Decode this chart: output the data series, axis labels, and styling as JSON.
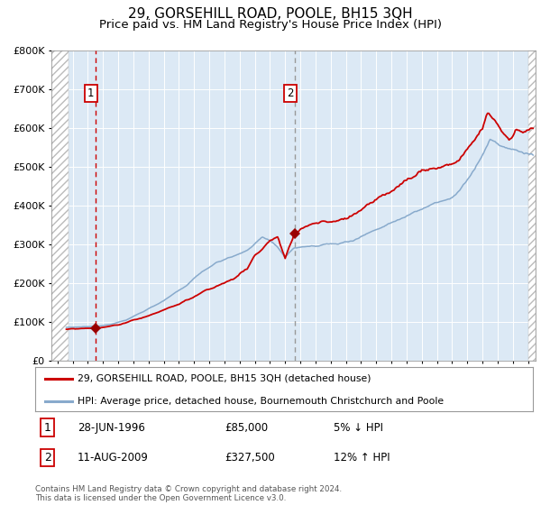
{
  "title": "29, GORSEHILL ROAD, POOLE, BH15 3QH",
  "subtitle": "Price paid vs. HM Land Registry's House Price Index (HPI)",
  "legend_line1": "29, GORSEHILL ROAD, POOLE, BH15 3QH (detached house)",
  "legend_line2": "HPI: Average price, detached house, Bournemouth Christchurch and Poole",
  "sale1_date": "28-JUN-1996",
  "sale1_price": 85000,
  "sale1_note": "5% ↓ HPI",
  "sale1_year": 1996.49,
  "sale2_date": "11-AUG-2009",
  "sale2_price": 327500,
  "sale2_note": "12% ↑ HPI",
  "sale2_year": 2009.62,
  "ylim": [
    0,
    800000
  ],
  "yticks": [
    0,
    100000,
    200000,
    300000,
    400000,
    500000,
    600000,
    700000,
    800000
  ],
  "xlim_start": 1993.6,
  "xlim_end": 2025.5,
  "background_color": "#dce9f5",
  "grid_color": "#ffffff",
  "red_line_color": "#cc0000",
  "blue_line_color": "#88aacc",
  "sale_marker_color": "#990000",
  "vline1_color": "#cc0000",
  "vline2_color": "#999999",
  "footer": "Contains HM Land Registry data © Crown copyright and database right 2024.\nThis data is licensed under the Open Government Licence v3.0.",
  "title_fontsize": 11,
  "subtitle_fontsize": 9.5,
  "tick_fontsize": 7.5
}
